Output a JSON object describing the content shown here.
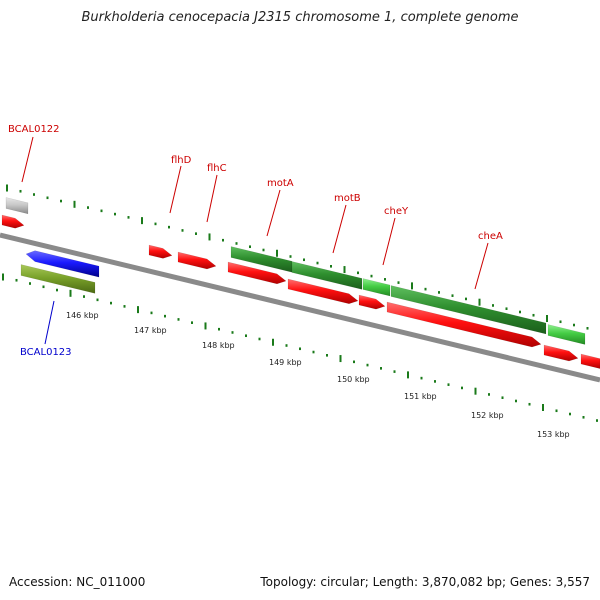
{
  "title": "Burkholderia cenocepacia J2315 chromosome 1, complete genome",
  "footer": {
    "accession": "Accession: NC_011000",
    "summary": "Topology: circular; Length: 3,870,082 bp; Genes: 3,557"
  },
  "colors": {
    "backbone": "#8a8a8a",
    "red_gene": "#ff1010",
    "dark_green_gene": "#2f8f2f",
    "light_green_gene": "#44cc44",
    "blue_gene": "#1a1aff",
    "olive_gene": "#7aa22a",
    "grey_gene": "#c8c8c8",
    "tick": "#1a7a1a",
    "label_red": "#cc0000",
    "label_blue": "#0000cc"
  },
  "scale_labels": [
    "146 kbp",
    "147 kbp",
    "148 kbp",
    "149 kbp",
    "150 kbp",
    "151 kbp",
    "152 kbp",
    "153 kbp"
  ],
  "gene_labels": [
    {
      "text": "BCAL0122",
      "color": "label_red"
    },
    {
      "text": "flhD",
      "color": "label_red"
    },
    {
      "text": "flhC",
      "color": "label_red"
    },
    {
      "text": "motA",
      "color": "label_red"
    },
    {
      "text": "motB",
      "color": "label_red"
    },
    {
      "text": "cheY",
      "color": "label_red"
    },
    {
      "text": "cheA",
      "color": "label_red"
    },
    {
      "text": "BCAL0123",
      "color": "label_blue"
    }
  ]
}
